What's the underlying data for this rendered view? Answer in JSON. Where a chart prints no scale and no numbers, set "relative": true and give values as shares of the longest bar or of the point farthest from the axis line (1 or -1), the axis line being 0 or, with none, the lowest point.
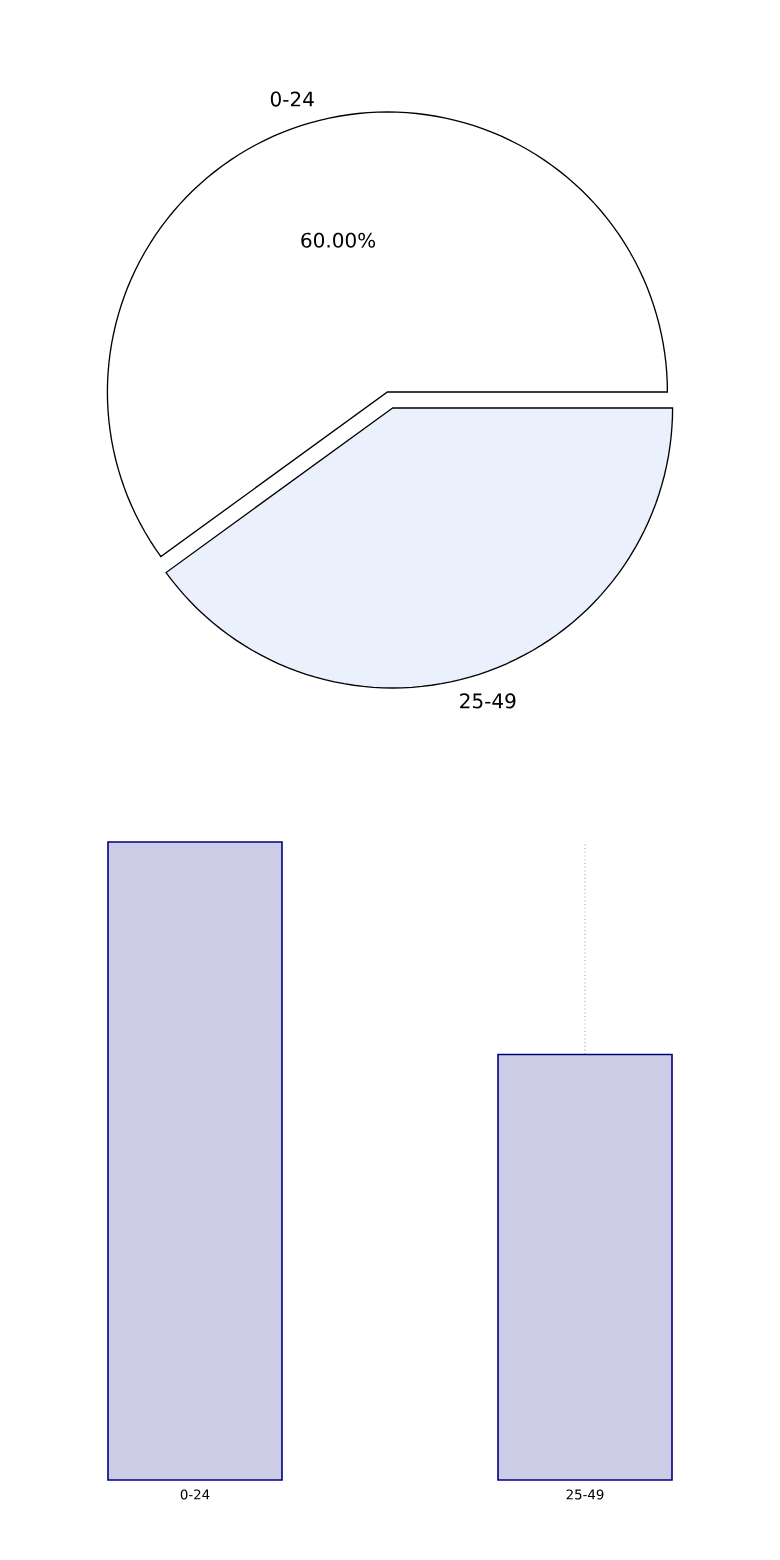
{
  "chart_data": [
    {
      "type": "pie",
      "categories": [
        "0-24",
        "25-49"
      ],
      "values": [
        60,
        40
      ],
      "colors": [
        "#ffffff",
        "#eaf0fc"
      ],
      "value_labels": [
        "60.00%",
        null
      ]
    },
    {
      "type": "bar",
      "categories": [
        "0-24",
        "25-49"
      ],
      "values": [
        1,
        0.667
      ],
      "color": "#cccce6",
      "relative": true,
      "grid": "x"
    }
  ]
}
